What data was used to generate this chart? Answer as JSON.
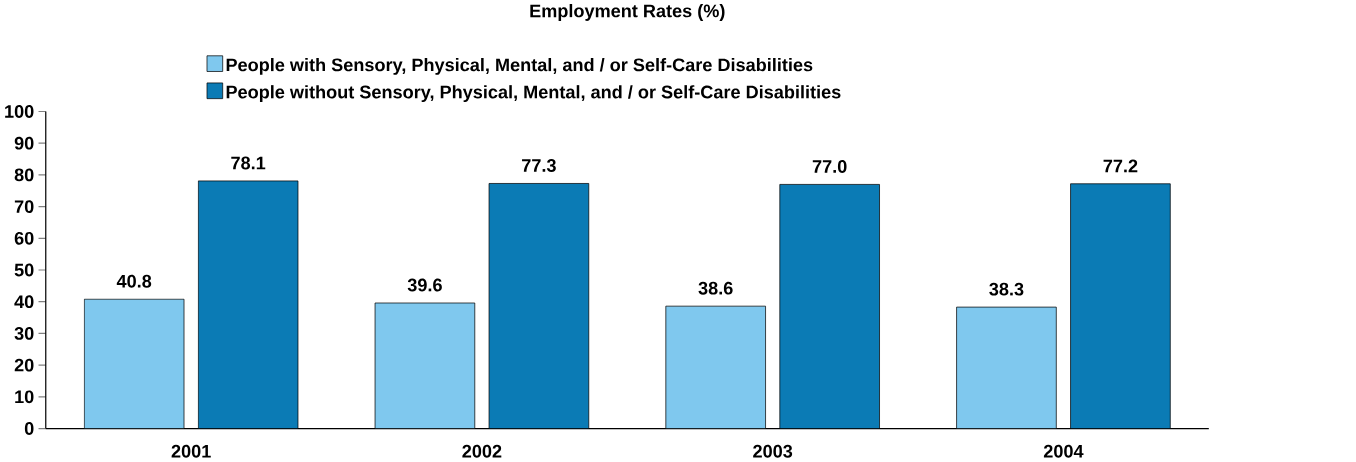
{
  "chart_data": {
    "type": "bar",
    "title": "Employment Rates (%)",
    "categories": [
      "2001",
      "2002",
      "2003",
      "2004"
    ],
    "series": [
      {
        "name": "People with Sensory, Physical, Mental, and / or Self-Care Disabilities",
        "color": "#7fc8ee",
        "values": [
          40.8,
          39.6,
          38.6,
          38.3
        ],
        "value_labels": [
          "40.8",
          "39.6",
          "38.6",
          "38.3"
        ]
      },
      {
        "name": "People without Sensory, Physical, Mental, and / or Self-Care Disabilities",
        "color": "#0b7bb5",
        "values": [
          78.1,
          77.3,
          77.0,
          77.2
        ],
        "value_labels": [
          "78.1",
          "77.3",
          "77.0",
          "77.2"
        ]
      }
    ],
    "ylim": [
      0,
      100
    ],
    "yticks": [
      0,
      10,
      20,
      30,
      40,
      50,
      60,
      70,
      80,
      90,
      100
    ],
    "legend": "top",
    "grid": false
  }
}
